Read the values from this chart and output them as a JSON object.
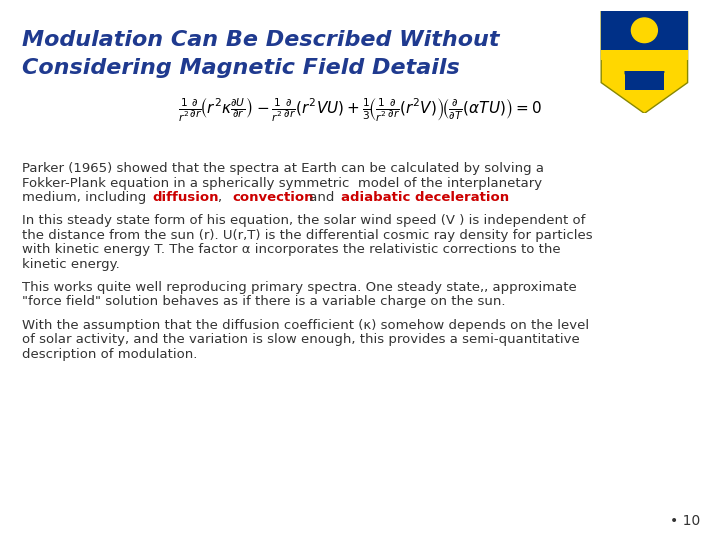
{
  "title_line1": "Modulation Can Be Described Without",
  "title_line2": "Considering Magnetic Field Details",
  "title_color": "#1F3A8F",
  "title_fontsize": 16,
  "equation_fontsize": 11,
  "paragraph1_lines": [
    "Parker (1965) showed that the spectra at Earth can be calculated by solving a",
    "Fokker-Plank equation in a spherically symmetric  model of the interplanetary",
    "medium, including "
  ],
  "paragraph1_colored": [
    [
      "diffusion",
      "#CC0000"
    ],
    [
      ", ",
      "#333333"
    ],
    [
      "convection",
      "#CC0000"
    ],
    [
      " and ",
      "#333333"
    ],
    [
      "adiabatic deceleration",
      "#CC0000"
    ],
    [
      ".",
      "#333333"
    ]
  ],
  "paragraph2_lines": [
    "In this steady state form of his equation, the solar wind speed (V ) is independent of",
    "the distance from the sun (r). U(r,T) is the differential cosmic ray density for particles",
    "with kinetic energy T. The factor α incorporates the relativistic corrections to the",
    "kinetic energy."
  ],
  "paragraph3_lines": [
    "This works quite well reproducing primary spectra. One steady state,, approximate",
    "\"force field\" solution behaves as if there is a variable charge on the sun."
  ],
  "paragraph4_lines": [
    "With the assumption that the diffusion coefficient (κ) somehow depends on the level",
    "of solar activity, and the variation is slow enough, this provides a semi-quantitative",
    "description of modulation."
  ],
  "text_fontsize": 9.5,
  "text_color": "#333333",
  "red_color": "#CC0000",
  "page_number": "• 10",
  "background_color": "#FFFFFF",
  "logo_colors": {
    "shield_blue": "#003087",
    "shield_gold": "#FFD700",
    "top_blue": "#003087"
  }
}
